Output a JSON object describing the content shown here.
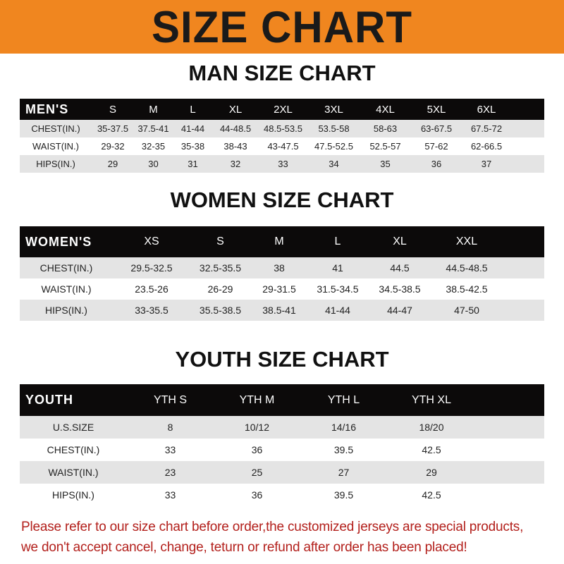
{
  "banner_title": "SIZE CHART",
  "men": {
    "title": "MAN SIZE CHART",
    "header": [
      "MEN'S",
      "S",
      "M",
      "L",
      "XL",
      "2XL",
      "3XL",
      "4XL",
      "5XL",
      "6XL"
    ],
    "rows": [
      [
        "CHEST(IN.)",
        "35-37.5",
        "37.5-41",
        "41-44",
        "44-48.5",
        "48.5-53.5",
        "53.5-58",
        "58-63",
        "63-67.5",
        "67.5-72"
      ],
      [
        "WAIST(IN.)",
        "29-32",
        "32-35",
        "35-38",
        "38-43",
        "43-47.5",
        "47.5-52.5",
        "52.5-57",
        "57-62",
        "62-66.5"
      ],
      [
        "HIPS(IN.)",
        "29",
        "30",
        "31",
        "32",
        "33",
        "34",
        "35",
        "36",
        "37"
      ]
    ]
  },
  "women": {
    "title": "WOMEN SIZE CHART",
    "header": [
      "WOMEN'S",
      "XS",
      "S",
      "M",
      "L",
      "XL",
      "XXL"
    ],
    "rows": [
      [
        "CHEST(IN.)",
        "29.5-32.5",
        "32.5-35.5",
        "38",
        "41",
        "44.5",
        "44.5-48.5"
      ],
      [
        "WAIST(IN.)",
        "23.5-26",
        "26-29",
        "29-31.5",
        "31.5-34.5",
        "34.5-38.5",
        "38.5-42.5"
      ],
      [
        "HIPS(IN.)",
        "33-35.5",
        "35.5-38.5",
        "38.5-41",
        "41-44",
        "44-47",
        "47-50"
      ]
    ]
  },
  "youth": {
    "title": "YOUTH SIZE CHART",
    "header": [
      "YOUTH",
      "YTH S",
      "YTH M",
      "YTH L",
      "YTH XL"
    ],
    "rows": [
      [
        "U.S.SIZE",
        "8",
        "10/12",
        "14/16",
        "18/20"
      ],
      [
        "CHEST(IN.)",
        "33",
        "36",
        "39.5",
        "42.5"
      ],
      [
        "WAIST(IN.)",
        "23",
        "25",
        "27",
        "29"
      ],
      [
        "HIPS(IN.)",
        "33",
        "36",
        "39.5",
        "42.5"
      ]
    ]
  },
  "notice": [
    "Please refer to our size chart before order,the customized jerseys are special products,",
    "we don't accept cancel, change, teturn or refund after order has been placed!"
  ],
  "colors": {
    "banner": "#f0861f",
    "header_row": "#0c0a0a",
    "notice": "#b3201c"
  }
}
